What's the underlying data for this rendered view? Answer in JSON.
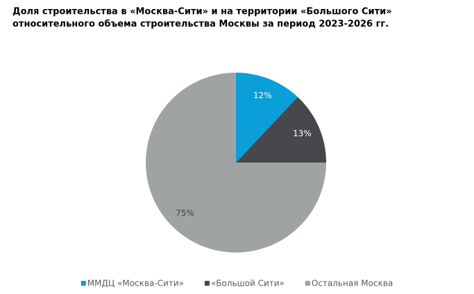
{
  "chart_data": {
    "type": "pie",
    "title": [
      "Доля строительства в «Москва-Сити» и на территории «Большого Сити»",
      "относительного объема строительства Москвы за период 2023-2026 гг."
    ],
    "categories": [
      "ММДЦ «Москва-Сити»",
      "«Большой Сити»",
      "Остальная Москва"
    ],
    "values": [
      12,
      13,
      75
    ],
    "value_labels": [
      "12%",
      "13%",
      "75%"
    ],
    "colors": [
      "#0a9fd9",
      "#47474c",
      "#a0a3a3"
    ],
    "label_colors": [
      "#ffffff",
      "#ffffff",
      "#404040"
    ],
    "legend": "bottom"
  }
}
